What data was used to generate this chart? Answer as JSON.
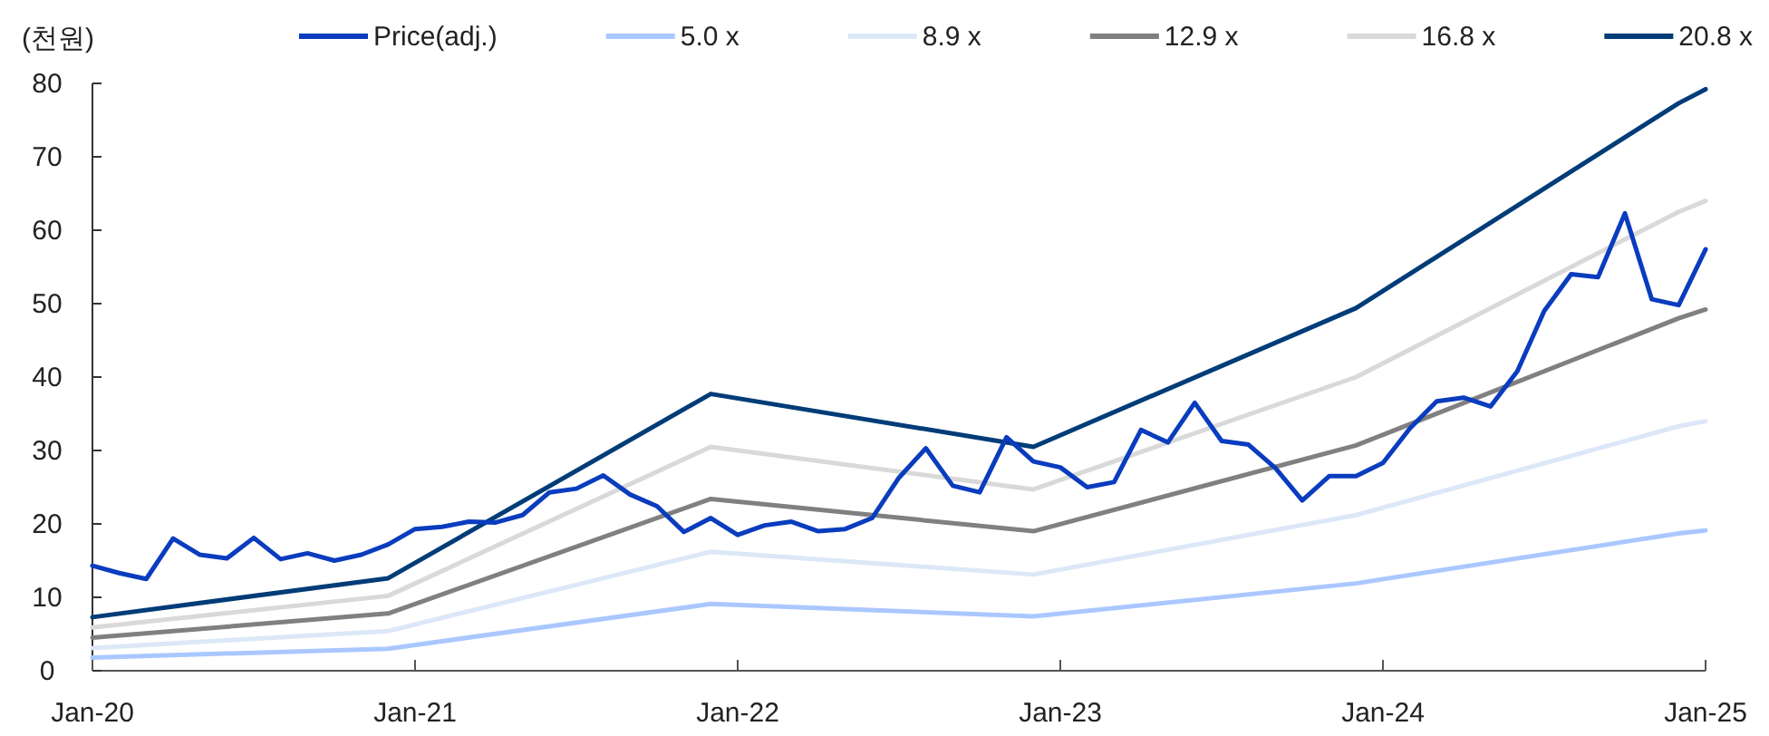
{
  "chart_data": {
    "type": "line",
    "ylabel": "(천원)",
    "xlim": [
      "2020-01",
      "2025-01"
    ],
    "xticks": [
      {
        "value": "2020-01",
        "label": "Jan-20"
      },
      {
        "value": "2021-01",
        "label": "Jan-21"
      },
      {
        "value": "2022-01",
        "label": "Jan-22"
      },
      {
        "value": "2023-01",
        "label": "Jan-23"
      },
      {
        "value": "2024-01",
        "label": "Jan-24"
      },
      {
        "value": "2025-01",
        "label": "Jan-25"
      }
    ],
    "ylim": [
      0,
      80
    ],
    "yticks": [
      0,
      10,
      20,
      30,
      40,
      50,
      60,
      70,
      80
    ],
    "grid": false,
    "legend": "top",
    "marker": "none",
    "line_style": "solid",
    "series": [
      {
        "name": "Price(adj.)",
        "color": "#0a3cbe",
        "x": [
          "2020-01",
          "2020-02",
          "2020-03",
          "2020-04",
          "2020-05",
          "2020-06",
          "2020-07",
          "2020-08",
          "2020-09",
          "2020-10",
          "2020-11",
          "2020-12",
          "2021-01",
          "2021-02",
          "2021-03",
          "2021-04",
          "2021-05",
          "2021-06",
          "2021-07",
          "2021-08",
          "2021-09",
          "2021-10",
          "2021-11",
          "2021-12",
          "2022-01",
          "2022-02",
          "2022-03",
          "2022-04",
          "2022-05",
          "2022-06",
          "2022-07",
          "2022-08",
          "2022-09",
          "2022-10",
          "2022-11",
          "2022-12",
          "2023-01",
          "2023-02",
          "2023-03",
          "2023-04",
          "2023-05",
          "2023-06",
          "2023-07",
          "2023-08",
          "2023-09",
          "2023-10",
          "2023-11",
          "2023-12",
          "2024-01",
          "2024-02",
          "2024-03",
          "2024-04",
          "2024-05",
          "2024-06",
          "2024-07",
          "2024-08",
          "2024-09",
          "2024-10",
          "2024-11",
          "2024-12",
          "2025-01"
        ],
        "values": [
          14.3,
          13.3,
          12.5,
          18.0,
          15.8,
          15.3,
          18.1,
          15.2,
          16.0,
          15.0,
          15.8,
          17.2,
          19.3,
          19.6,
          20.3,
          20.2,
          21.2,
          24.3,
          24.8,
          26.6,
          24.0,
          22.4,
          18.9,
          20.8,
          18.5,
          19.8,
          20.3,
          19.0,
          19.3,
          20.8,
          26.3,
          30.3,
          25.2,
          24.3,
          31.8,
          28.5,
          27.7,
          25.0,
          25.7,
          32.8,
          31.1,
          36.5,
          31.3,
          30.8,
          27.6,
          23.2,
          26.5,
          26.5,
          28.3,
          33.0,
          36.7,
          37.2,
          36.0,
          40.8,
          49.0,
          54.0,
          53.6,
          62.3,
          50.6,
          49.8,
          57.4
        ]
      },
      {
        "name": "5.0 x",
        "color": "#aac8ff",
        "x": [
          "2020-01",
          "2020-12",
          "2021-12",
          "2022-12",
          "2023-12",
          "2024-12",
          "2025-01"
        ],
        "values": [
          1.8,
          3.0,
          9.1,
          7.4,
          11.9,
          18.7,
          19.1
        ]
      },
      {
        "name": "8.9 x",
        "color": "#dce8f8",
        "x": [
          "2020-01",
          "2020-12",
          "2021-12",
          "2022-12",
          "2023-12",
          "2024-12",
          "2025-01"
        ],
        "values": [
          3.1,
          5.4,
          16.2,
          13.1,
          21.2,
          33.3,
          34.0
        ]
      },
      {
        "name": "12.9 x",
        "color": "#808080",
        "x": [
          "2020-01",
          "2020-12",
          "2021-12",
          "2022-12",
          "2023-12",
          "2024-12",
          "2025-01"
        ],
        "values": [
          4.5,
          7.8,
          23.4,
          19.0,
          30.7,
          48.0,
          49.2
        ]
      },
      {
        "name": "16.8 x",
        "color": "#d9d9d9",
        "x": [
          "2020-01",
          "2020-12",
          "2021-12",
          "2022-12",
          "2023-12",
          "2024-12",
          "2025-01"
        ],
        "values": [
          5.9,
          10.2,
          30.5,
          24.7,
          40.0,
          62.5,
          64.0
        ]
      },
      {
        "name": "20.8 x",
        "color": "#003c78",
        "x": [
          "2020-01",
          "2020-12",
          "2021-12",
          "2022-12",
          "2023-12",
          "2024-12",
          "2025-01"
        ],
        "values": [
          7.3,
          12.6,
          37.7,
          30.5,
          49.4,
          77.3,
          79.2
        ]
      }
    ]
  }
}
